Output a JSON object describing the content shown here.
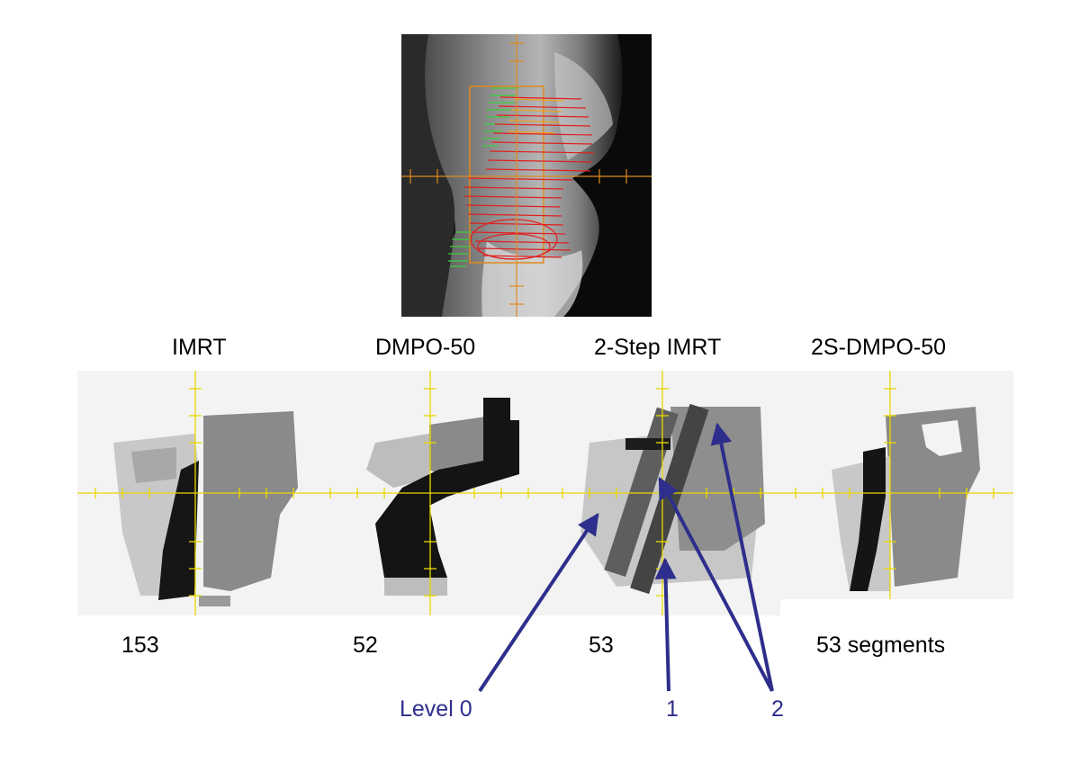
{
  "panels": [
    {
      "title": "IMRT",
      "segments": "153"
    },
    {
      "title": "DMPO-50",
      "segments": "52"
    },
    {
      "title": "2-Step IMRT",
      "segments": "53"
    },
    {
      "title": "2S-DMPO-50",
      "segments": "53  segments"
    }
  ],
  "annotations": {
    "level0": "Level 0",
    "level1": "1",
    "level2": "2"
  },
  "colors": {
    "annotation": "#2e2e8c",
    "crosshair_fluence": "#e8d800",
    "crosshair_ct": "#e08a1e",
    "contour_target": "#e02020",
    "contour_organ": "#3ccf3c"
  }
}
